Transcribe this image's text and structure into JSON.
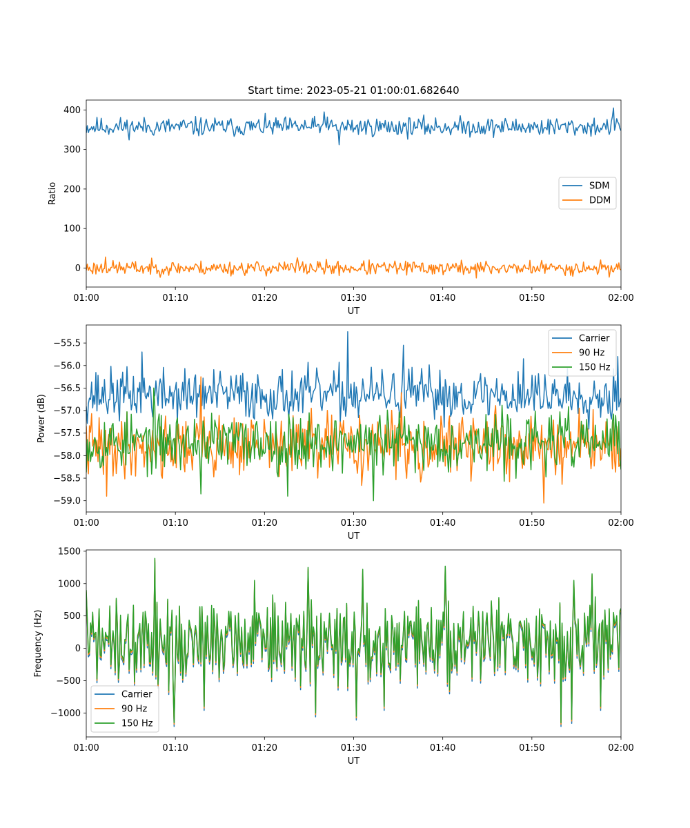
{
  "colors": {
    "c0": "#1f77b4",
    "c1": "#ff7f0e",
    "c2": "#2ca02c"
  },
  "chart_data": [
    {
      "type": "line",
      "title": "Start time: 2023-05-21 01:00:01.682640",
      "xlabel": "UT",
      "ylabel": "Ratio",
      "xlim": [
        0,
        60
      ],
      "ylim": [
        -48,
        425
      ],
      "xticks": [
        0,
        10,
        20,
        30,
        40,
        50,
        60
      ],
      "xtick_labels": [
        "01:00",
        "01:10",
        "01:20",
        "01:30",
        "01:40",
        "01:50",
        "02:00"
      ],
      "yticks": [
        0,
        100,
        200,
        300,
        400
      ],
      "ytick_labels": [
        "0",
        "100",
        "200",
        "300",
        "400"
      ],
      "legend": "center-right",
      "series": [
        {
          "name": "SDM",
          "color": "#1f77b4",
          "mean": 357,
          "noise": 12,
          "min": 312,
          "max": 405
        },
        {
          "name": "DDM",
          "color": "#ff7f0e",
          "mean": 0,
          "noise": 9,
          "min": -25,
          "max": 28
        }
      ]
    },
    {
      "type": "line",
      "title": "",
      "xlabel": "UT",
      "ylabel": "Power (dB)",
      "xlim": [
        0,
        60
      ],
      "ylim": [
        -59.25,
        -55.1
      ],
      "xticks": [
        0,
        10,
        20,
        30,
        40,
        50,
        60
      ],
      "xtick_labels": [
        "01:00",
        "01:10",
        "01:20",
        "01:30",
        "01:40",
        "01:50",
        "02:00"
      ],
      "yticks": [
        -55.5,
        -56.0,
        -56.5,
        -57.0,
        -57.5,
        -58.0,
        -58.5,
        -59.0
      ],
      "ytick_labels": [
        "−55.5",
        "−56.0",
        "−56.5",
        "−57.0",
        "−57.5",
        "−58.0",
        "−58.5",
        "−59.0"
      ],
      "legend": "upper-right",
      "series": [
        {
          "name": "Carrier",
          "color": "#1f77b4",
          "mean": -56.65,
          "noise": 0.28,
          "min": -57.6,
          "max": -55.25
        },
        {
          "name": "90 Hz",
          "color": "#ff7f0e",
          "mean": -57.75,
          "noise": 0.35,
          "min": -59.05,
          "max": -56.25
        },
        {
          "name": "150 Hz",
          "color": "#2ca02c",
          "mean": -57.7,
          "noise": 0.33,
          "min": -59.0,
          "max": -56.5
        }
      ]
    },
    {
      "type": "line",
      "title": "",
      "xlabel": "UT",
      "ylabel": "Frequency (Hz)",
      "xlim": [
        0,
        60
      ],
      "ylim": [
        -1370,
        1520
      ],
      "xticks": [
        0,
        10,
        20,
        30,
        40,
        50,
        60
      ],
      "xtick_labels": [
        "01:00",
        "01:10",
        "01:20",
        "01:30",
        "01:40",
        "01:50",
        "02:00"
      ],
      "yticks": [
        1500,
        1000,
        500,
        0,
        -500,
        -1000
      ],
      "ytick_labels": [
        "1500",
        "1000",
        "500",
        "0",
        "−500",
        "−1000"
      ],
      "legend": "lower-left",
      "series": [
        {
          "name": "Carrier",
          "color": "#1f77b4",
          "offset": -60,
          "min": -1240,
          "max": 1330
        },
        {
          "name": "90 Hz",
          "color": "#ff7f0e",
          "offset": -25,
          "min": -1180,
          "max": 1360
        },
        {
          "name": "150 Hz",
          "color": "#2ca02c",
          "offset": 0,
          "min": -1150,
          "max": 1390
        }
      ]
    }
  ]
}
